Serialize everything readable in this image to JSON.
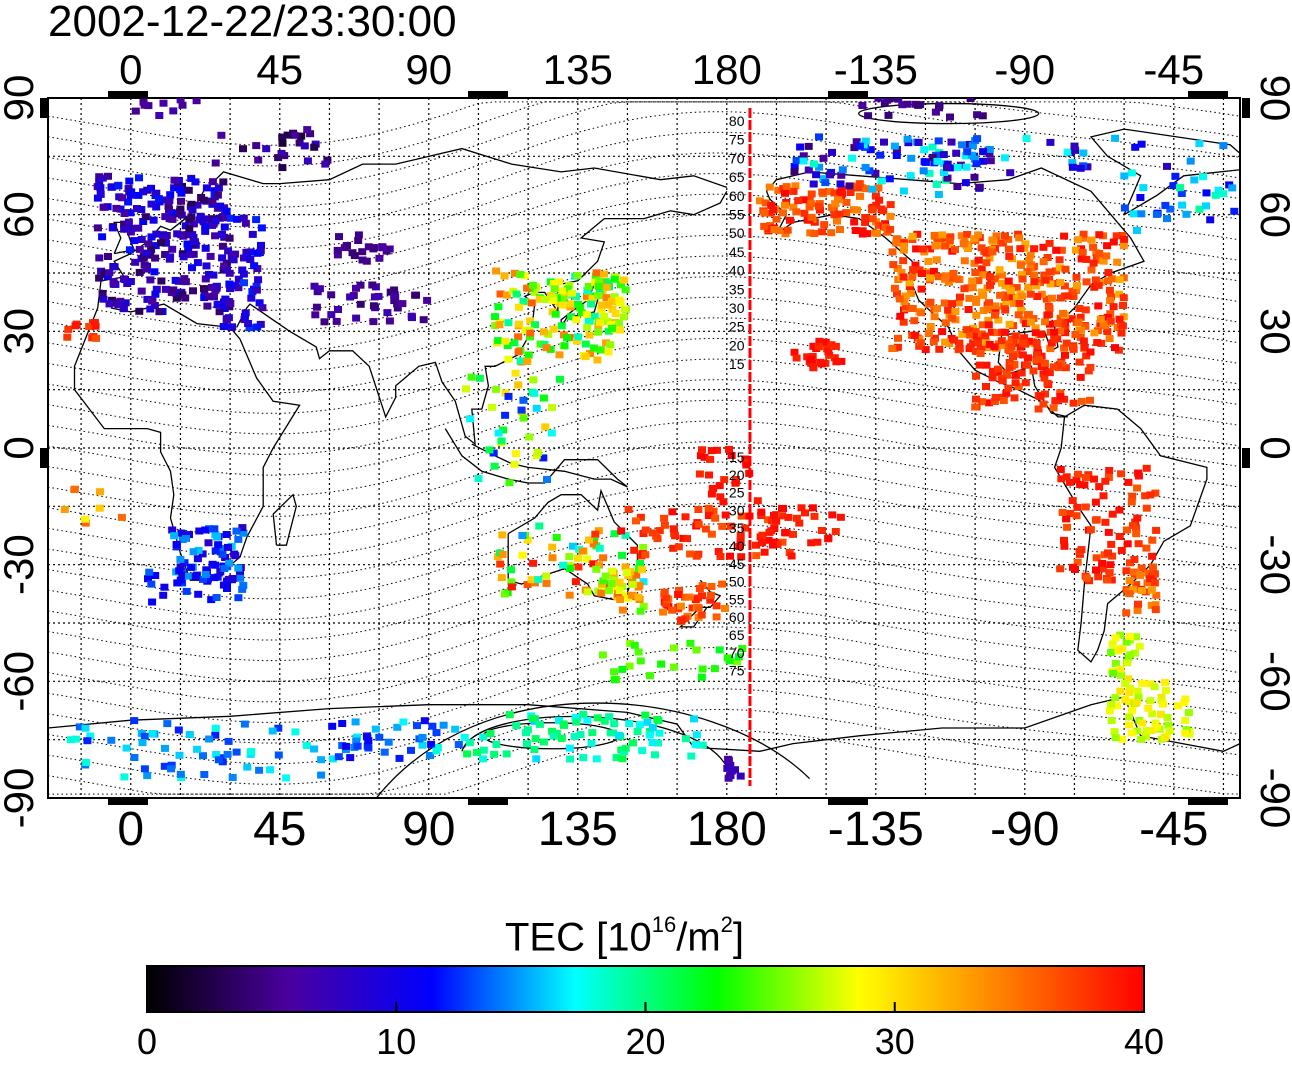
{
  "title": "2002-12-22/23:30:00",
  "colorbar": {
    "label_prefix": "TEC  [10",
    "label_exp1": "16",
    "label_mid": "/m",
    "label_exp2": "2",
    "label_suffix": "]",
    "ticks": [
      "0",
      "10",
      "20",
      "30",
      "40"
    ],
    "colormap": [
      "#000000",
      "#4a00a0",
      "#0000ff",
      "#00ffff",
      "#00ff00",
      "#ffff00",
      "#ff8000",
      "#ff0000"
    ]
  },
  "axes": {
    "x_tick_labels": [
      "0",
      "45",
      "90",
      "135",
      "180",
      "-135",
      "-90",
      "-45"
    ],
    "y_tick_labels": [
      "90",
      "60",
      "30",
      "0",
      "-30",
      "-60",
      "-90"
    ],
    "x_range_deg": [
      -25,
      335
    ],
    "y_range_deg": [
      -90,
      90
    ],
    "grid": true
  },
  "contour_labels": {
    "north": [
      "80",
      "75",
      "70",
      "65",
      "60",
      "55",
      "50",
      "45",
      "40",
      "35",
      "30",
      "25",
      "20",
      "15"
    ],
    "south": [
      "15",
      "20",
      "25",
      "30",
      "35",
      "40",
      "45",
      "50",
      "55",
      "60",
      "65",
      "70",
      "75"
    ]
  },
  "meridian_line_lon": 187,
  "colors": {
    "meridian": "#ff0000",
    "coastline": "#000000",
    "grid": "#000000"
  }
}
